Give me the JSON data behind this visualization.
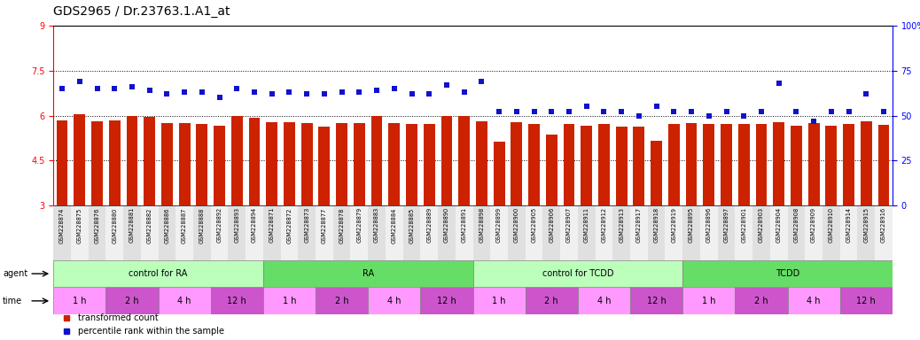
{
  "title": "GDS2965 / Dr.23763.1.A1_at",
  "gsm_labels": [
    "GSM228874",
    "GSM228875",
    "GSM228876",
    "GSM228880",
    "GSM228881",
    "GSM228882",
    "GSM228886",
    "GSM228887",
    "GSM228888",
    "GSM228892",
    "GSM228893",
    "GSM228894",
    "GSM228871",
    "GSM228872",
    "GSM228873",
    "GSM228877",
    "GSM228878",
    "GSM228879",
    "GSM228883",
    "GSM228884",
    "GSM228885",
    "GSM228889",
    "GSM228890",
    "GSM228891",
    "GSM228898",
    "GSM228899",
    "GSM228900",
    "GSM228905",
    "GSM228906",
    "GSM228907",
    "GSM228911",
    "GSM228912",
    "GSM228913",
    "GSM228917",
    "GSM228918",
    "GSM228919",
    "GSM228895",
    "GSM228896",
    "GSM228897",
    "GSM228901",
    "GSM228903",
    "GSM228904",
    "GSM228908",
    "GSM228909",
    "GSM228910",
    "GSM228914",
    "GSM228915",
    "GSM228916"
  ],
  "bar_values": [
    5.85,
    6.05,
    5.82,
    5.85,
    6.0,
    5.97,
    5.75,
    5.75,
    5.72,
    5.65,
    6.0,
    5.93,
    5.78,
    5.78,
    5.74,
    5.62,
    5.75,
    5.75,
    6.0,
    5.75,
    5.72,
    5.72,
    6.0,
    5.98,
    5.82,
    5.12,
    5.78,
    5.72,
    5.38,
    5.72,
    5.65,
    5.72,
    5.62,
    5.62,
    5.15,
    5.72,
    5.75,
    5.72,
    5.72,
    5.72,
    5.72,
    5.78,
    5.65,
    5.75,
    5.65,
    5.72,
    5.82,
    5.68
  ],
  "dot_values_pct": [
    65,
    69,
    65,
    65,
    66,
    64,
    62,
    63,
    63,
    60,
    65,
    63,
    62,
    63,
    62,
    62,
    63,
    63,
    64,
    65,
    62,
    62,
    67,
    63,
    69,
    52,
    52,
    52,
    52,
    52,
    55,
    52,
    52,
    50,
    55,
    52,
    52,
    50,
    52,
    50,
    52,
    68,
    52,
    47,
    52,
    52,
    62,
    52
  ],
  "ylim_left": [
    3,
    9
  ],
  "ylim_right": [
    0,
    100
  ],
  "yticks_left": [
    3,
    4.5,
    6,
    7.5,
    9
  ],
  "yticks_right": [
    0,
    25,
    50,
    75,
    100
  ],
  "bar_color": "#cc2200",
  "dot_color": "#1111cc",
  "agent_groups": [
    {
      "label": "control for RA",
      "start": 0,
      "end": 11,
      "color": "#bbffbb"
    },
    {
      "label": "RA",
      "start": 12,
      "end": 23,
      "color": "#66dd66"
    },
    {
      "label": "control for TCDD",
      "start": 24,
      "end": 35,
      "color": "#bbffbb"
    },
    {
      "label": "TCDD",
      "start": 36,
      "end": 47,
      "color": "#66dd66"
    }
  ],
  "time_groups": [
    {
      "label": "1 h",
      "start": 0,
      "end": 2,
      "color": "#ff99ff"
    },
    {
      "label": "2 h",
      "start": 3,
      "end": 5,
      "color": "#cc55cc"
    },
    {
      "label": "4 h",
      "start": 6,
      "end": 8,
      "color": "#ff99ff"
    },
    {
      "label": "12 h",
      "start": 9,
      "end": 11,
      "color": "#cc55cc"
    },
    {
      "label": "1 h",
      "start": 12,
      "end": 14,
      "color": "#ff99ff"
    },
    {
      "label": "2 h",
      "start": 15,
      "end": 17,
      "color": "#cc55cc"
    },
    {
      "label": "4 h",
      "start": 18,
      "end": 20,
      "color": "#ff99ff"
    },
    {
      "label": "12 h",
      "start": 21,
      "end": 23,
      "color": "#cc55cc"
    },
    {
      "label": "1 h",
      "start": 24,
      "end": 26,
      "color": "#ff99ff"
    },
    {
      "label": "2 h",
      "start": 27,
      "end": 29,
      "color": "#cc55cc"
    },
    {
      "label": "4 h",
      "start": 30,
      "end": 32,
      "color": "#ff99ff"
    },
    {
      "label": "12 h",
      "start": 33,
      "end": 35,
      "color": "#cc55cc"
    },
    {
      "label": "1 h",
      "start": 36,
      "end": 38,
      "color": "#ff99ff"
    },
    {
      "label": "2 h",
      "start": 39,
      "end": 41,
      "color": "#cc55cc"
    },
    {
      "label": "4 h",
      "start": 42,
      "end": 44,
      "color": "#ff99ff"
    },
    {
      "label": "12 h",
      "start": 45,
      "end": 47,
      "color": "#cc55cc"
    }
  ],
  "legend_items": [
    {
      "label": "transformed count",
      "color": "#cc2200",
      "marker": "s"
    },
    {
      "label": "percentile rank within the sample",
      "color": "#1111cc",
      "marker": "s"
    }
  ],
  "title_fontsize": 10,
  "tick_fontsize": 7,
  "gsm_fontsize": 4.8,
  "row_fontsize": 7,
  "legend_fontsize": 7
}
